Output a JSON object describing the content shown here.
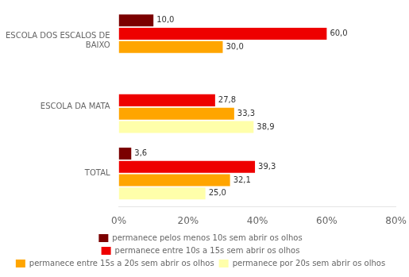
{
  "chart_data": {
    "type": "bar",
    "orientation": "horizontal",
    "categories": [
      "ESCOLA DOS ESCALOS DE\nBAIXO",
      "ESCOLA DA MATA",
      "TOTAL"
    ],
    "series": [
      {
        "name": "permanece pelos menos 10s sem abrir os olhos",
        "color": "#7B0000",
        "values": [
          10.0,
          null,
          3.6
        ],
        "value_labels": [
          "10,0",
          null,
          "3,6"
        ]
      },
      {
        "name": "permanece entre 10s a 15s sem abrir os olhos",
        "color": "#EE0000",
        "values": [
          60.0,
          27.8,
          39.3
        ],
        "value_labels": [
          "60,0",
          "27,8",
          "39,3"
        ]
      },
      {
        "name": "permanece entre 15s a 20s sem abrir os olhos",
        "color": "#FFA500",
        "values": [
          30.0,
          33.3,
          32.1
        ],
        "value_labels": [
          "30,0",
          "33,3",
          "32,1"
        ]
      },
      {
        "name": "permanece por 20s sem abrir os olhos",
        "color": "#FFFFAA",
        "values": [
          null,
          38.9,
          25.0
        ],
        "value_labels": [
          null,
          "38,9",
          "25,0"
        ]
      }
    ],
    "xlim": [
      0,
      80
    ],
    "xticks": [
      {
        "value": 0,
        "label": "0%"
      },
      {
        "value": 20,
        "label": "20%"
      },
      {
        "value": 40,
        "label": "40%"
      },
      {
        "value": 60,
        "label": "60%"
      },
      {
        "value": 80,
        "label": "80%"
      }
    ],
    "grid": false,
    "legend": "bottom",
    "data_labels": true
  }
}
